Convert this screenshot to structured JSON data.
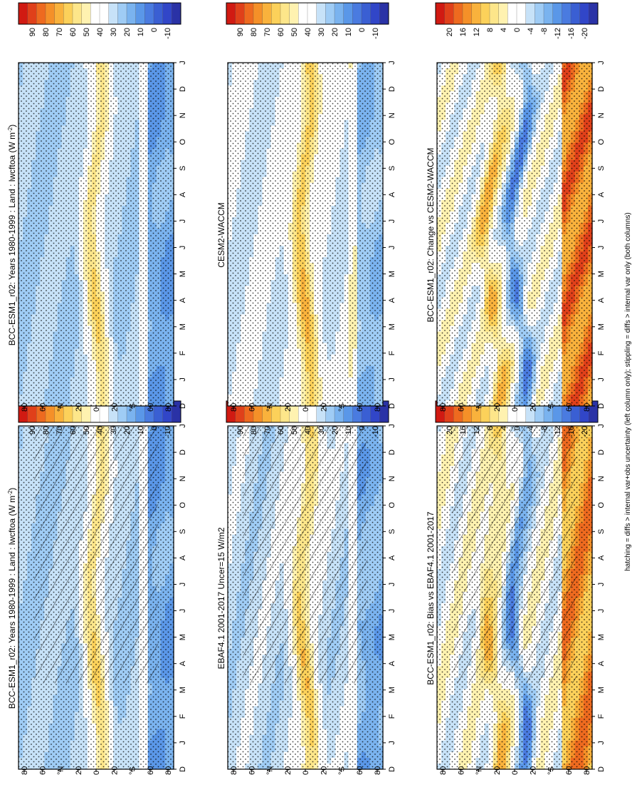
{
  "figure_note": "hatching = diffs > internal var+obs uncertainty (left column only); stippling = diffs > internal var only (both columns)",
  "palettes": {
    "abs": [
      "#2a32a6",
      "#3146c8",
      "#3a5fd3",
      "#4a7be0",
      "#5a97e8",
      "#7ab3ef",
      "#9fccf5",
      "#c7e2f8",
      "#ffffff",
      "#ffffff",
      "#fff2b0",
      "#fde68a",
      "#fcd15a",
      "#f9b23c",
      "#f59028",
      "#ee6a1f",
      "#e0401a",
      "#d11a12"
    ],
    "diff": [
      "#2a32a6",
      "#3146c8",
      "#3a5fd3",
      "#4a7be0",
      "#5a97e8",
      "#7ab3ef",
      "#9fccf5",
      "#c7e2f8",
      "#ffffff",
      "#ffffff",
      "#fff2b0",
      "#fde68a",
      "#fcd15a",
      "#f9b23c",
      "#f59028",
      "#ee6a1f",
      "#e0401a",
      "#d11a12"
    ]
  },
  "colorbars": {
    "abs_ticks": [
      "90",
      "80",
      "70",
      "60",
      "50",
      "40",
      "30",
      "20",
      "10",
      "0",
      "-10"
    ],
    "diff_ticks": [
      "20",
      "16",
      "12",
      "8",
      "4",
      "0",
      "-4",
      "-8",
      "-12",
      "-16",
      "-20"
    ]
  },
  "lat_ticks": [
    "80",
    "60",
    "°N",
    "20",
    "0",
    "20",
    "°S",
    "60",
    "80"
  ],
  "month_ticks": [
    "D",
    "J",
    "F",
    "M",
    "A",
    "M",
    "J",
    "J",
    "A",
    "S",
    "O",
    "N",
    "D",
    "J"
  ],
  "chart_data": [
    {
      "type": "heatmap",
      "title": "BCC-ESM1_r02: Years 1980-1999 : Land : lwcftoa (W m",
      "title_sup": "-2",
      "title_close": ")",
      "x": "month",
      "y": "latitude",
      "ylim": [
        -90,
        90
      ],
      "colorbar": "abs",
      "hatching": true,
      "stippling": true
    },
    {
      "type": "heatmap",
      "title": "BCC-ESM1_r02: Years 1980-1999 : Land : lwcftoa (W m",
      "title_sup": "-2",
      "title_close": ")",
      "x": "month",
      "y": "latitude",
      "ylim": [
        -90,
        90
      ],
      "colorbar": "abs",
      "hatching": false,
      "stippling": true
    },
    {
      "type": "heatmap",
      "title": "EBAF4.1 2001-2017 Uncer=15 W/m2",
      "x": "month",
      "y": "latitude",
      "ylim": [
        -90,
        90
      ],
      "colorbar": "abs",
      "hatching": true,
      "stippling": true
    },
    {
      "type": "heatmap",
      "title": "CESM2-WACCM",
      "x": "month",
      "y": "latitude",
      "ylim": [
        -90,
        90
      ],
      "colorbar": "abs",
      "hatching": false,
      "stippling": true
    },
    {
      "type": "heatmap",
      "title": "BCC-ESM1_r02: Bias vs EBAF4.1 2001-2017",
      "x": "month",
      "y": "latitude",
      "ylim": [
        -90,
        90
      ],
      "colorbar": "diff",
      "hatching": true,
      "stippling": true
    },
    {
      "type": "heatmap",
      "title": "BCC-ESM1_r02: Change vs CESM2-WACCM",
      "x": "month",
      "y": "latitude",
      "ylim": [
        -90,
        90
      ],
      "colorbar": "diff",
      "hatching": false,
      "stippling": true
    }
  ]
}
